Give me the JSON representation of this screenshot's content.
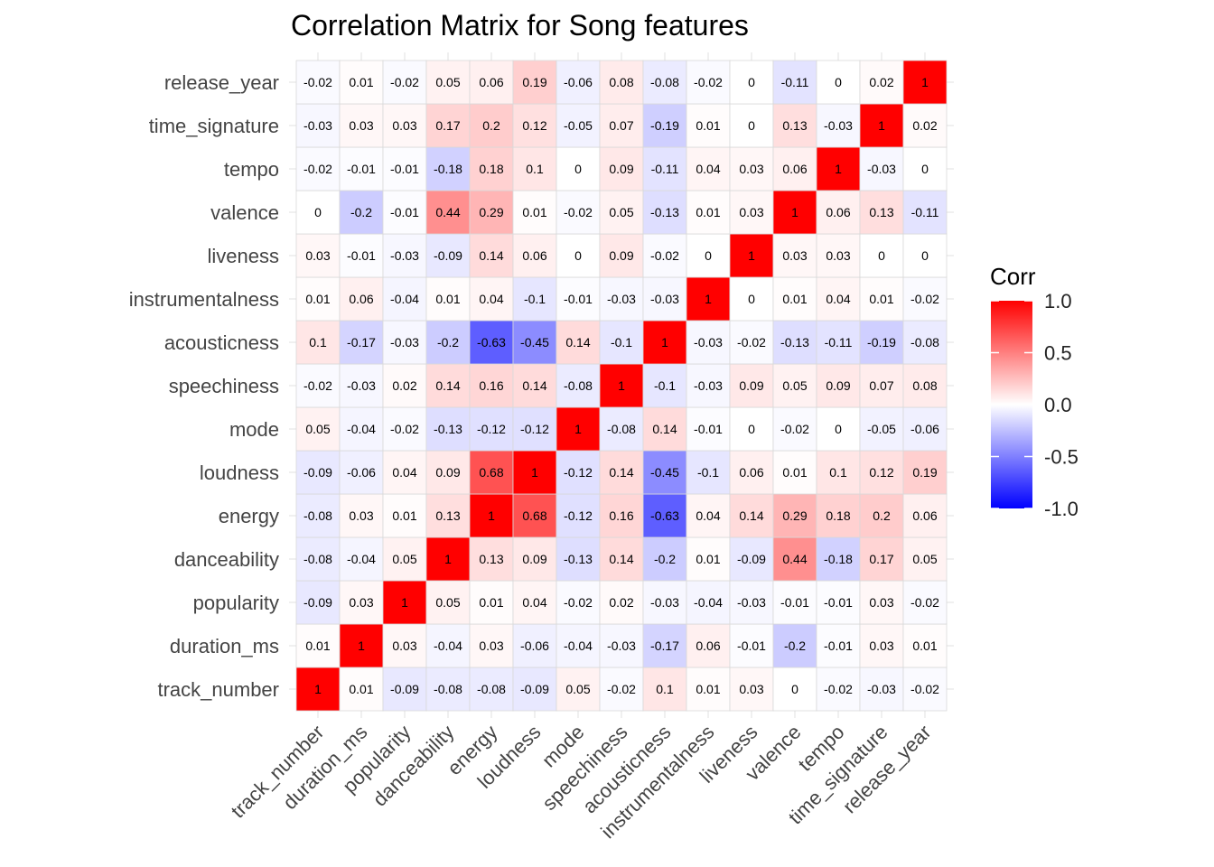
{
  "chart_data": {
    "type": "heatmap",
    "title": "Correlation Matrix for Song features",
    "variables": [
      "track_number",
      "duration_ms",
      "popularity",
      "danceability",
      "energy",
      "loudness",
      "mode",
      "speechiness",
      "acousticness",
      "instrumentalness",
      "liveness",
      "valence",
      "tempo",
      "time_signature",
      "release_year"
    ],
    "matrix": [
      [
        1,
        0.01,
        -0.09,
        -0.08,
        -0.08,
        -0.09,
        0.05,
        -0.02,
        0.1,
        0.01,
        0.03,
        0,
        -0.02,
        -0.03,
        -0.02
      ],
      [
        0.01,
        1,
        0.03,
        -0.04,
        0.03,
        -0.06,
        -0.04,
        -0.03,
        -0.17,
        0.06,
        -0.01,
        -0.2,
        -0.01,
        0.03,
        0.01
      ],
      [
        -0.09,
        0.03,
        1,
        0.05,
        0.01,
        0.04,
        -0.02,
        0.02,
        -0.03,
        -0.04,
        -0.03,
        -0.01,
        -0.01,
        0.03,
        -0.02
      ],
      [
        -0.08,
        -0.04,
        0.05,
        1,
        0.13,
        0.09,
        -0.13,
        0.14,
        -0.2,
        0.01,
        -0.09,
        0.44,
        -0.18,
        0.17,
        0.05
      ],
      [
        -0.08,
        0.03,
        0.01,
        0.13,
        1,
        0.68,
        -0.12,
        0.16,
        -0.63,
        0.04,
        0.14,
        0.29,
        0.18,
        0.2,
        0.06
      ],
      [
        -0.09,
        -0.06,
        0.04,
        0.09,
        0.68,
        1,
        -0.12,
        0.14,
        -0.45,
        -0.1,
        0.06,
        0.01,
        0.1,
        0.12,
        0.19
      ],
      [
        0.05,
        -0.04,
        -0.02,
        -0.13,
        -0.12,
        -0.12,
        1,
        -0.08,
        0.14,
        -0.01,
        0,
        -0.02,
        0,
        -0.05,
        -0.06
      ],
      [
        -0.02,
        -0.03,
        0.02,
        0.14,
        0.16,
        0.14,
        -0.08,
        1,
        -0.1,
        -0.03,
        0.09,
        0.05,
        0.09,
        0.07,
        0.08
      ],
      [
        0.1,
        -0.17,
        -0.03,
        -0.2,
        -0.63,
        -0.45,
        0.14,
        -0.1,
        1,
        -0.03,
        -0.02,
        -0.13,
        -0.11,
        -0.19,
        -0.08
      ],
      [
        0.01,
        0.06,
        -0.04,
        0.01,
        0.04,
        -0.1,
        -0.01,
        -0.03,
        -0.03,
        1,
        0,
        0.01,
        0.04,
        0.01,
        -0.02
      ],
      [
        0.03,
        -0.01,
        -0.03,
        -0.09,
        0.14,
        0.06,
        0,
        0.09,
        -0.02,
        0,
        1,
        0.03,
        0.03,
        0,
        0
      ],
      [
        0,
        -0.2,
        -0.01,
        0.44,
        0.29,
        0.01,
        -0.02,
        0.05,
        -0.13,
        0.01,
        0.03,
        1,
        0.06,
        0.13,
        -0.11
      ],
      [
        -0.02,
        -0.01,
        -0.01,
        -0.18,
        0.18,
        0.1,
        0,
        0.09,
        -0.11,
        0.04,
        0.03,
        0.06,
        1,
        -0.03,
        0
      ],
      [
        -0.03,
        0.03,
        0.03,
        0.17,
        0.2,
        0.12,
        -0.05,
        0.07,
        -0.19,
        0.01,
        0,
        0.13,
        -0.03,
        1,
        0.02
      ],
      [
        -0.02,
        0.01,
        -0.02,
        0.05,
        0.06,
        0.19,
        -0.06,
        0.08,
        -0.08,
        -0.02,
        0,
        -0.11,
        0,
        0.02,
        1
      ]
    ],
    "color_scale": {
      "low": "#0000FF",
      "mid": "#FFFFFF",
      "high": "#FF0000",
      "limits": [
        -1,
        1
      ]
    },
    "legend": {
      "title": "Corr",
      "placement": "right",
      "ticks": [
        "1.0",
        "0.5",
        "0.0",
        "-0.5",
        "-1.0"
      ]
    },
    "grid": true
  }
}
